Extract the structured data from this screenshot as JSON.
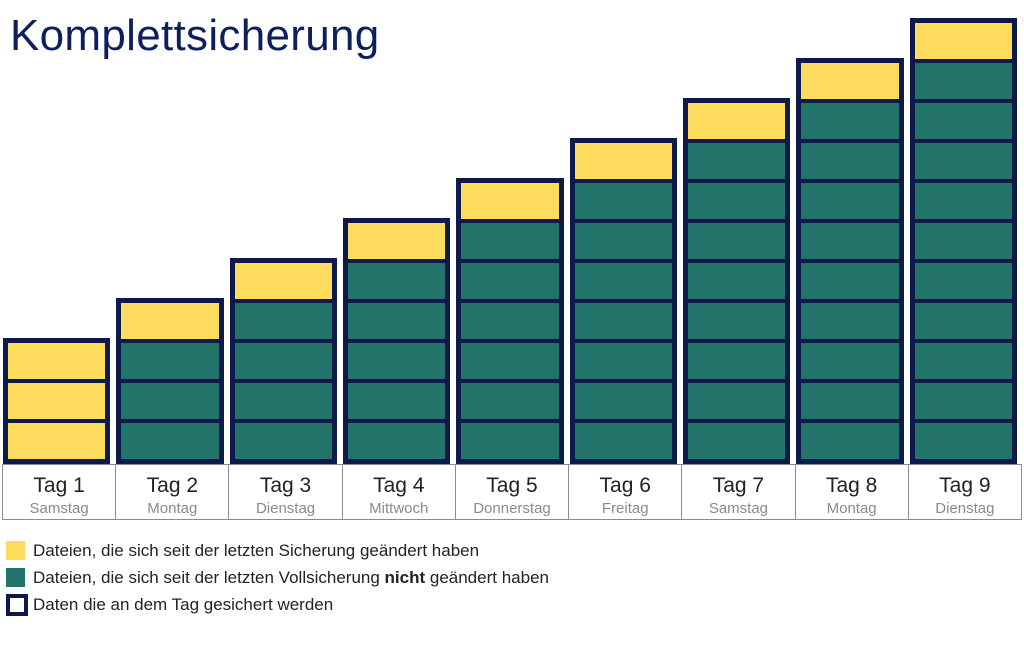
{
  "title": "Komplettsicherung",
  "colors": {
    "changed": "#ffdb5e",
    "unchanged": "#22746a",
    "saved_border": "#0d1a4a",
    "title": "#0d1f5c"
  },
  "days": [
    {
      "label": "Tag 1",
      "weekday": "Samstag",
      "changed_blocks": 3,
      "unchanged_blocks": 0
    },
    {
      "label": "Tag 2",
      "weekday": "Montag",
      "changed_blocks": 1,
      "unchanged_blocks": 3
    },
    {
      "label": "Tag 3",
      "weekday": "Dienstag",
      "changed_blocks": 1,
      "unchanged_blocks": 4
    },
    {
      "label": "Tag 4",
      "weekday": "Mittwoch",
      "changed_blocks": 1,
      "unchanged_blocks": 5
    },
    {
      "label": "Tag 5",
      "weekday": "Donnerstag",
      "changed_blocks": 1,
      "unchanged_blocks": 6
    },
    {
      "label": "Tag 6",
      "weekday": "Freitag",
      "changed_blocks": 1,
      "unchanged_blocks": 7
    },
    {
      "label": "Tag 7",
      "weekday": "Samstag",
      "changed_blocks": 1,
      "unchanged_blocks": 8
    },
    {
      "label": "Tag 8",
      "weekday": "Montag",
      "changed_blocks": 1,
      "unchanged_blocks": 9
    },
    {
      "label": "Tag 9",
      "weekday": "Dienstag",
      "changed_blocks": 1,
      "unchanged_blocks": 10
    }
  ],
  "legend": {
    "changed": "Dateien, die sich seit der letzten Sicherung geändert haben",
    "unchanged_pre": "Dateien, die sich seit der letzten Vollsicherung ",
    "unchanged_bold": "nicht",
    "unchanged_post": " geändert haben",
    "saved": "Daten die an dem Tag gesichert werden"
  }
}
